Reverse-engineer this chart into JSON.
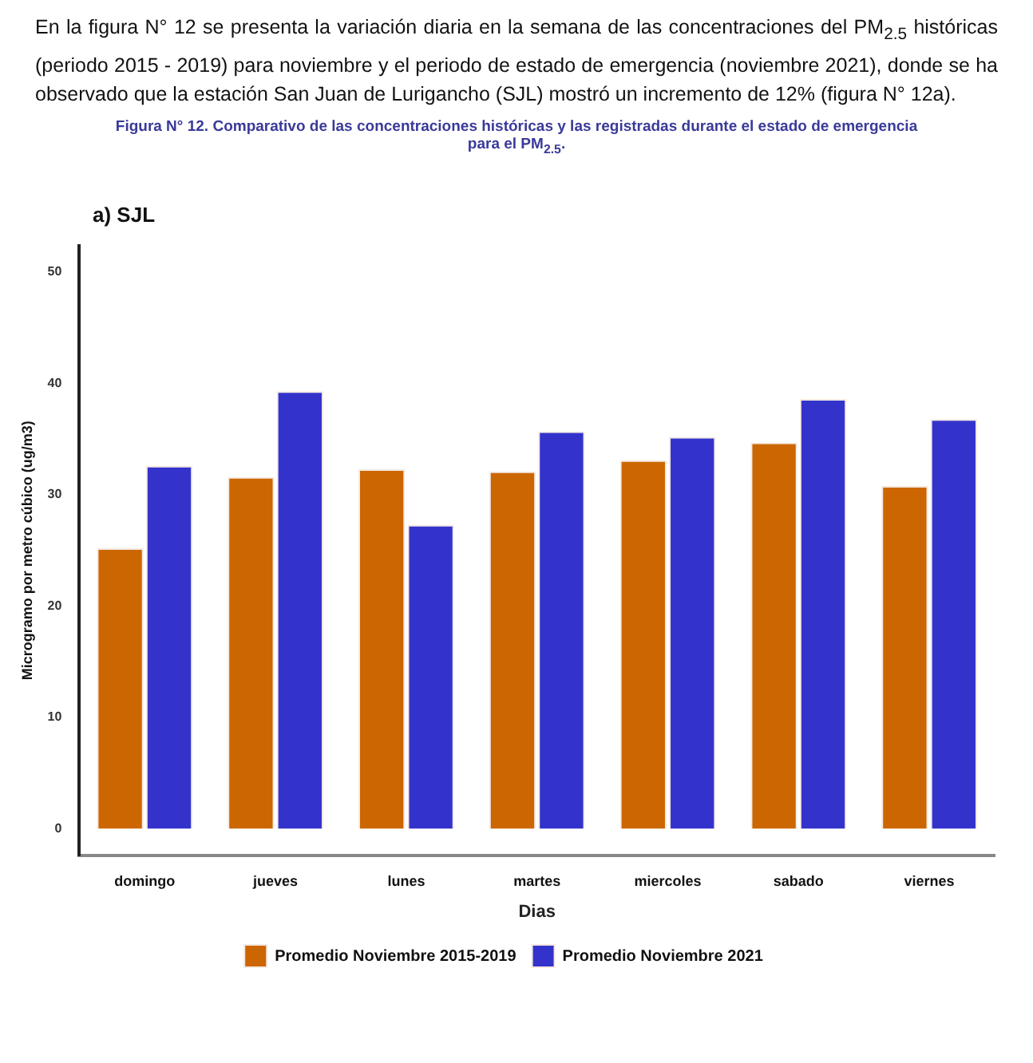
{
  "chart_data": {
    "type": "bar",
    "title": "Figura N° 12. Comparativo de las concentraciones históricas y las registradas durante el estado de emergencia para el PM$_{2.5}$.",
    "subtitle": "a) SJL",
    "xlabel": "Dias",
    "ylabel": "Microgramo por metro cúbico (ug/m3)",
    "annotations": [
      "En la figura N° 12 se presenta la variación diaria en la semana de las concentraciones del PM$_{2.5}$ históricas (periodo 2015 - 2019) para noviembre y el periodo de estado de emergencia (noviembre 2021), donde se ha observado que la estación San Juan de Lurigancho (SJL) mostró un incremento de 12% (figura N° 12a)."
    ],
    "categories": [
      "domingo",
      "jueves",
      "lunes",
      "martes",
      "miercoles",
      "sabado",
      "viernes"
    ],
    "series": [
      {
        "name": "Promedio Noviembre 2015-2019",
        "color": "#cc6600",
        "values": [
          25.2,
          31.6,
          32.3,
          32.1,
          33.1,
          34.7,
          30.8
        ]
      },
      {
        "name": "Promedio Noviembre 2021",
        "color": "#3333cc",
        "values": [
          32.6,
          39.3,
          27.3,
          35.7,
          35.2,
          38.6,
          36.8
        ]
      }
    ],
    "ylim": [
      -2.4,
      52.4
    ],
    "yticks": [
      0,
      10,
      20,
      30,
      40,
      50
    ],
    "grid": false,
    "legend": "bottom"
  }
}
